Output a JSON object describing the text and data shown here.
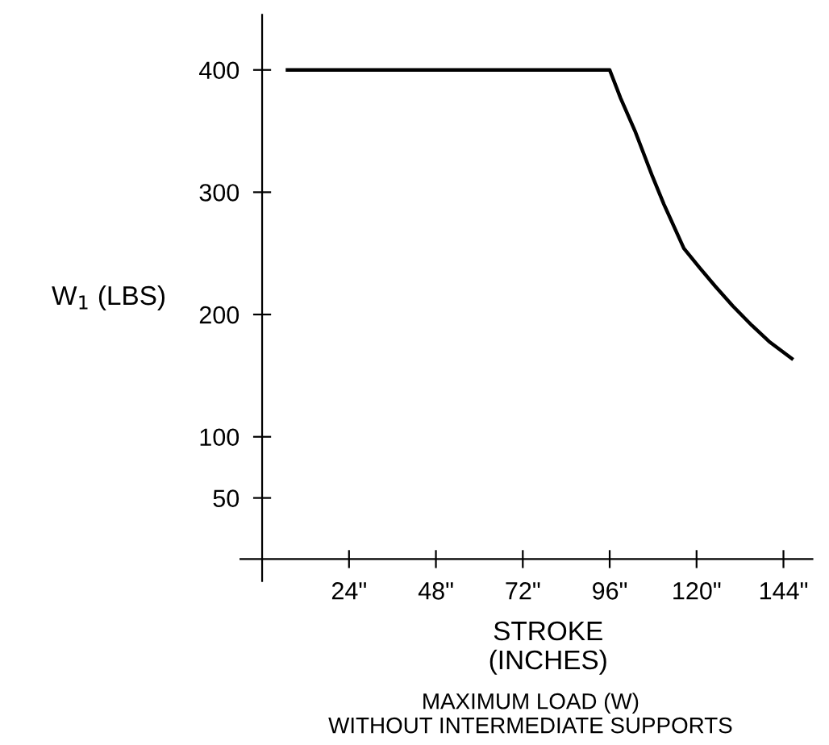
{
  "chart_data": {
    "type": "line",
    "xlabel": "STROKE\n(INCHES)",
    "ylabel": "W$_{1}$ (LBS)",
    "annotations": [
      "MAXIMUM LOAD (W)\nWITHOUT INTERMEDIATE SUPPORTS"
    ],
    "series": [
      {
        "color": "#000000",
        "x": [
          7,
          96,
          99,
          103,
          107.8,
          111,
          116.5,
          120.9,
          125.2,
          130,
          135.3,
          140,
          146.3
        ],
        "values": [
          400,
          400,
          377,
          350,
          313,
          290,
          254,
          238,
          223,
          207,
          191,
          178,
          164
        ]
      }
    ],
    "xlim": [
      -6,
      152
    ],
    "ylim": [
      -18,
      445
    ],
    "xticks": [
      {
        "value": 24,
        "label": "24\""
      },
      {
        "value": 48,
        "label": "48\""
      },
      {
        "value": 72,
        "label": "72\""
      },
      {
        "value": 96,
        "label": "96\""
      },
      {
        "value": 120,
        "label": "120\""
      },
      {
        "value": 144,
        "label": "144\""
      }
    ],
    "yticks": [
      50,
      100,
      200,
      300,
      400
    ],
    "grid": false,
    "marker": "none",
    "line_style": "solid"
  }
}
